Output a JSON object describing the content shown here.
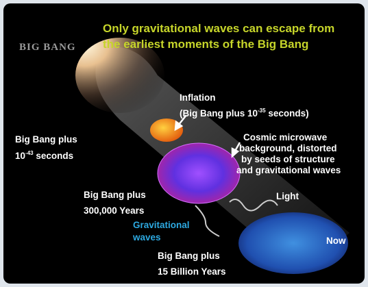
{
  "logo": "BIG BANG",
  "title": {
    "line1": "Only gravitational waves can escape from",
    "line2": "the earliest moments of the Big Bang"
  },
  "inflation": {
    "label": "Inflation",
    "time": {
      "before": "(Big Bang plus 10",
      "sup": "-35",
      "after": " seconds)"
    }
  },
  "start": {
    "line1": "Big Bang plus",
    "line2": {
      "before": "10",
      "sup": "-43",
      "after": " seconds"
    }
  },
  "cmb": {
    "lines": [
      "Cosmic microwave",
      "background, distorted",
      "by seeds of structure",
      "and gravitational waves"
    ]
  },
  "recombination": {
    "line1": "Big Bang plus",
    "line2": "300,000 Years"
  },
  "light": "Light",
  "gravitational_waves": {
    "line1": "Gravitational",
    "line2": "waves"
  },
  "now": {
    "label": "Now",
    "line1": "Big Bang plus",
    "line2": "15 Billion Years"
  }
}
